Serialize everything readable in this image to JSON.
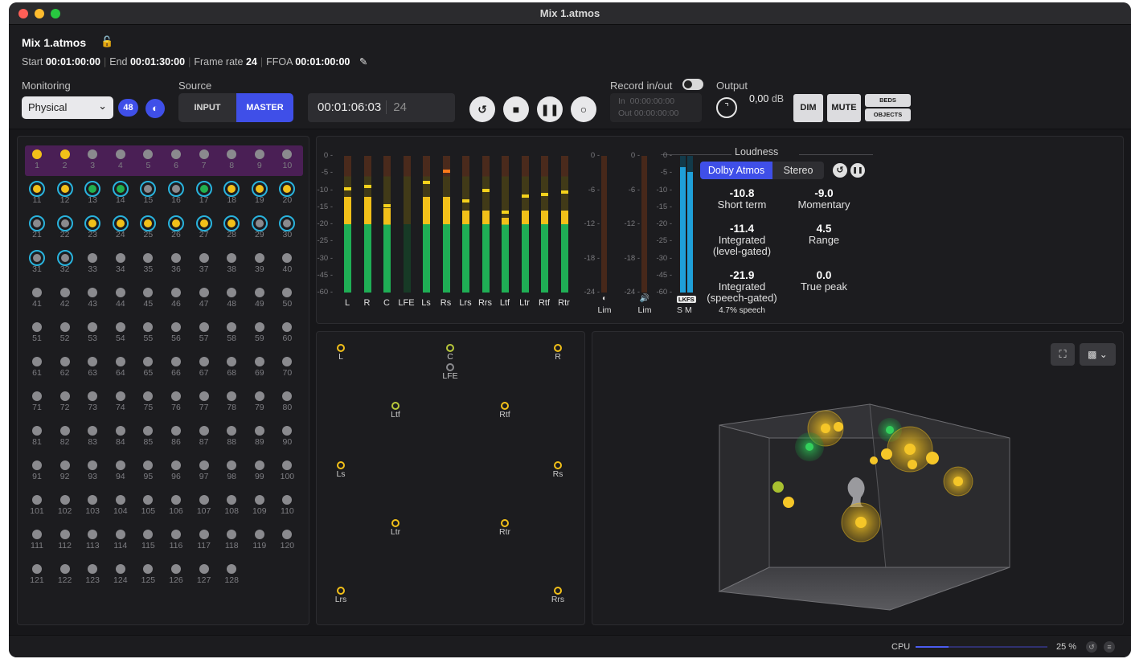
{
  "window": {
    "title": "Mix 1.atmos"
  },
  "header": {
    "title": "Mix 1.atmos",
    "start_label": "Start",
    "start": "00:01:00:00",
    "end_label": "End",
    "end": "00:01:30:00",
    "framerate_label": "Frame rate",
    "framerate": "24",
    "ffoa_label": "FFOA",
    "ffoa": "00:01:00:00"
  },
  "monitoring": {
    "label": "Monitoring",
    "value": "Physical",
    "badge": "48"
  },
  "source": {
    "label": "Source",
    "options": [
      "INPUT",
      "MASTER"
    ],
    "selected": "MASTER"
  },
  "transport": {
    "timecode": "00:01:06:03",
    "frame": "24"
  },
  "record": {
    "label": "Record in/out",
    "in_label": "In",
    "in": "00:00:00:00",
    "out_label": "Out",
    "out": "00:00:00:00"
  },
  "output": {
    "label": "Output",
    "level": "0,00",
    "unit": "dB",
    "dim": "DIM",
    "mute": "MUTE",
    "beds": "BEDS",
    "objects": "OBJECTS"
  },
  "inputs": {
    "count": 128,
    "row1_states": [
      "yellow",
      "yellow",
      "grey",
      "grey",
      "grey",
      "grey",
      "grey",
      "grey",
      "grey",
      "grey"
    ],
    "ring_states": {
      "11": "yellow",
      "12": "yellow",
      "13": "green",
      "14": "green",
      "15": "grey",
      "16": "grey",
      "17": "green",
      "18": "yellow",
      "19": "yellow",
      "20": "yellow",
      "21": "grey",
      "22": "grey",
      "23": "yellow",
      "24": "yellow",
      "25": "yellow",
      "26": "yellow",
      "27": "yellow",
      "28": "yellow",
      "29": "grey",
      "30": "grey",
      "31": "grey",
      "32": "grey"
    }
  },
  "meters": {
    "scale": [
      "0",
      "-5",
      "-10",
      "-15",
      "-20",
      "-25",
      "-30",
      "-45",
      "-60"
    ],
    "small_scale": [
      "0",
      "-6",
      "-12",
      "-18",
      "-24"
    ],
    "channels": [
      {
        "name": "L",
        "level": 0.7,
        "peak": 0.77
      },
      {
        "name": "R",
        "level": 0.7,
        "peak": 0.79
      },
      {
        "name": "C",
        "level": 0.62,
        "peak": 0.65
      },
      {
        "name": "LFE",
        "level": 0.0,
        "peak": 0
      },
      {
        "name": "Ls",
        "level": 0.7,
        "peak": 0.82
      },
      {
        "name": "Rs",
        "level": 0.7,
        "peak": 0.9
      },
      {
        "name": "Lrs",
        "level": 0.6,
        "peak": 0.68
      },
      {
        "name": "Rrs",
        "level": 0.6,
        "peak": 0.76
      },
      {
        "name": "Ltf",
        "level": 0.55,
        "peak": 0.6
      },
      {
        "name": "Ltr",
        "level": 0.6,
        "peak": 0.72
      },
      {
        "name": "Rtf",
        "level": 0.6,
        "peak": 0.73
      },
      {
        "name": "Rtr",
        "level": 0.6,
        "peak": 0.75
      }
    ],
    "lim1_label": "Lim",
    "lim2_label": "Lim",
    "lkfs_label": "LKFS",
    "s_label": "S",
    "m_label": "M"
  },
  "loudness": {
    "title": "Loudness",
    "modes": [
      "Dolby Atmos",
      "Stereo"
    ],
    "selected_mode": "Dolby Atmos",
    "short_term": {
      "value": "-10.8",
      "label": "Short term"
    },
    "momentary": {
      "value": "-9.0",
      "label": "Momentary"
    },
    "integrated_level": {
      "value": "-11.4",
      "label1": "Integrated",
      "label2": "(level-gated)"
    },
    "range": {
      "value": "4.5",
      "label": "Range"
    },
    "integrated_speech": {
      "value": "-21.9",
      "label1": "Integrated",
      "label2": "(speech-gated)",
      "note": "4.7% speech"
    },
    "true_peak": {
      "value": "0.0",
      "label": "True peak"
    }
  },
  "speakers": [
    "L",
    "C",
    "R",
    "LFE",
    "Ltf",
    "Rtf",
    "Ls",
    "Rs",
    "Ltr",
    "Rtr",
    "Lrs",
    "Rrs"
  ],
  "status": {
    "cpu_label": "CPU",
    "cpu_value": "25 %",
    "cpu_fraction": 0.25
  },
  "colors": {
    "accent": "#3f4fe8",
    "yellow": "#f2c019",
    "green": "#22b04f",
    "cyan": "#29b3dd",
    "purple": "#4a1f55"
  }
}
